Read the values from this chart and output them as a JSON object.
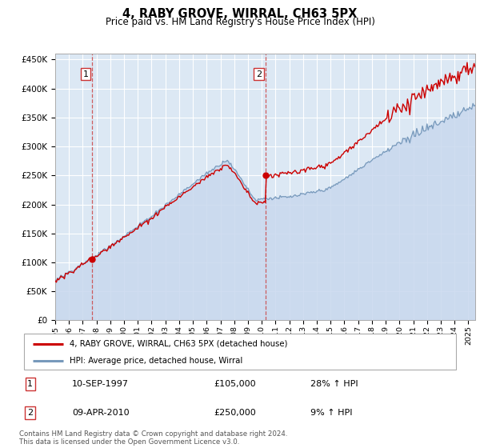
{
  "title": "4, RABY GROVE, WIRRAL, CH63 5PX",
  "subtitle": "Price paid vs. HM Land Registry's House Price Index (HPI)",
  "ytick_values": [
    0,
    50000,
    100000,
    150000,
    200000,
    250000,
    300000,
    350000,
    400000,
    450000
  ],
  "ylim": [
    0,
    460000
  ],
  "xlim_start": 1995.0,
  "xlim_end": 2025.5,
  "sale1_date": 1997.7,
  "sale1_price": 105000,
  "sale2_date": 2010.27,
  "sale2_price": 250000,
  "sale1_date_str": "10-SEP-1997",
  "sale2_date_str": "09-APR-2010",
  "sale1_hpi_pct": "28% ↑ HPI",
  "sale2_hpi_pct": "9% ↑ HPI",
  "red_line_color": "#cc0000",
  "blue_line_color": "#7799bb",
  "blue_fill_color": "#c8d8ee",
  "background_color": "#dce8f4",
  "grid_color": "#ffffff",
  "vline_color": "#cc4444",
  "legend_label_red": "4, RABY GROVE, WIRRAL, CH63 5PX (detached house)",
  "legend_label_blue": "HPI: Average price, detached house, Wirral",
  "footer": "Contains HM Land Registry data © Crown copyright and database right 2024.\nThis data is licensed under the Open Government Licence v3.0.",
  "xtick_years": [
    1995,
    1996,
    1997,
    1998,
    1999,
    2000,
    2001,
    2002,
    2003,
    2004,
    2005,
    2006,
    2007,
    2008,
    2009,
    2010,
    2011,
    2012,
    2013,
    2014,
    2015,
    2016,
    2017,
    2018,
    2019,
    2020,
    2021,
    2022,
    2023,
    2024,
    2025
  ]
}
